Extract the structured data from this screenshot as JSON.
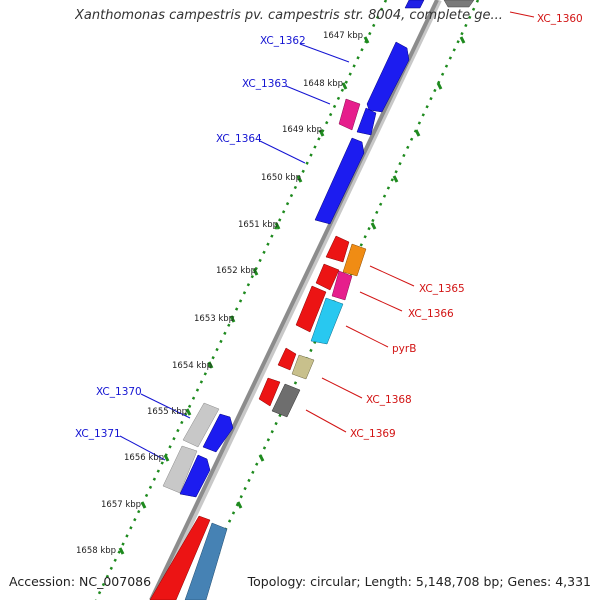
{
  "title": "Xanthomonas campestris pv. campestris str. 8004, complete ge...",
  "footer": {
    "accession": "Accession: NC_007086",
    "summary": "Topology: circular; Length: 5,148,708 bp; Genes: 4,331"
  },
  "colors": {
    "backbone": "#8c8c8c",
    "tick": "#1e8a1e",
    "label_left": "#1414d2",
    "label_right": "#d21414"
  },
  "scale_ticks": [
    "1647 kbp",
    "1648 kbp",
    "1649 kbp",
    "1650 kbp",
    "1651 kbp",
    "1652 kbp",
    "1653 kbp",
    "1654 kbp",
    "1655 kbp",
    "1656 kbp",
    "1657 kbp",
    "1658 kbp"
  ],
  "gene_labels": {
    "left": [
      "XC_1362",
      "XC_1363",
      "XC_1364",
      "XC_1370",
      "XC_1371"
    ],
    "right": [
      "XC_1360",
      "XC_1365",
      "XC_1366",
      "pyrB",
      "XC_1368",
      "XC_1369"
    ]
  }
}
